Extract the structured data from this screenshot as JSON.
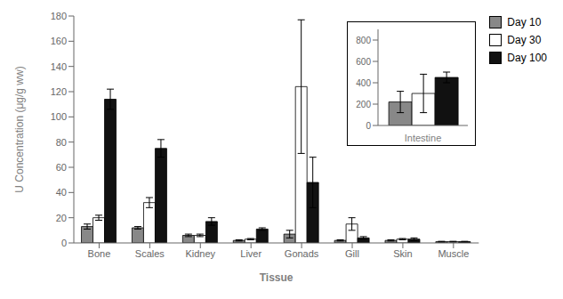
{
  "chart_data": [
    {
      "type": "bar",
      "categories": [
        "Bone",
        "Scales",
        "Kidney",
        "Liver",
        "Gonads",
        "Gill",
        "Skin",
        "Muscle"
      ],
      "series": [
        {
          "name": "Day 10",
          "color": "#888888",
          "values": [
            13,
            12,
            6,
            2,
            7,
            2,
            2,
            1
          ],
          "errors": [
            2,
            1,
            1,
            0.5,
            3,
            0.5,
            0.5,
            0.3
          ]
        },
        {
          "name": "Day 30",
          "color": "#ffffff",
          "values": [
            20,
            32,
            6,
            3,
            124,
            15,
            3,
            1
          ],
          "errors": [
            2,
            4,
            1,
            0.5,
            53,
            5,
            0.5,
            0.3
          ]
        },
        {
          "name": "Day 100",
          "color": "#111111",
          "values": [
            114,
            75,
            17,
            11,
            48,
            4,
            3,
            1
          ],
          "errors": [
            8,
            7,
            3,
            1,
            20,
            1,
            1,
            0.3
          ]
        }
      ],
      "xlabel": "Tissue",
      "ylabel": "U Concentration (μg/g ww)",
      "ylim": [
        0,
        180
      ],
      "yticks": [
        0,
        20,
        40,
        60,
        80,
        100,
        120,
        140,
        160,
        180
      ],
      "legend": "right"
    },
    {
      "type": "bar",
      "categories": [
        null
      ],
      "series": [
        {
          "color": "#888888",
          "values": [
            220
          ],
          "errors": [
            100
          ]
        },
        {
          "color": "#ffffff",
          "values": [
            300
          ],
          "errors": [
            180
          ]
        },
        {
          "color": "#111111",
          "values": [
            450
          ],
          "errors": [
            50
          ]
        }
      ],
      "xlabel": "Intestine",
      "ylim": [
        0,
        900
      ],
      "yticks": [
        0,
        200,
        400,
        600,
        800
      ],
      "tick_labels": "y"
    }
  ]
}
